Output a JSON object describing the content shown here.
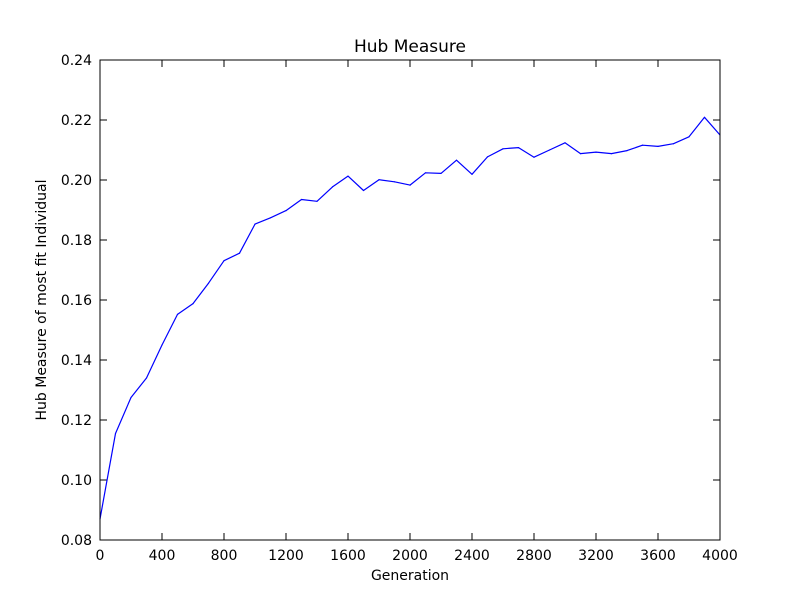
{
  "chart_data": {
    "type": "line",
    "title": "Hub Measure",
    "xlabel": "Generation",
    "ylabel": "Hub Measure of most fit Individual",
    "xlim": [
      0,
      4000
    ],
    "ylim": [
      0.08,
      0.24
    ],
    "xticks": [
      0,
      400,
      800,
      1200,
      1600,
      2000,
      2400,
      2800,
      3200,
      3600,
      4000
    ],
    "xtick_labels": [
      "0",
      "400",
      "800",
      "1200",
      "1600",
      "2000",
      "2400",
      "2800",
      "3200",
      "3600",
      "4000"
    ],
    "yticks": [
      0.08,
      0.1,
      0.12,
      0.14,
      0.16,
      0.18,
      0.2,
      0.22,
      0.24
    ],
    "ytick_labels": [
      "0.08",
      "0.10",
      "0.12",
      "0.14",
      "0.16",
      "0.18",
      "0.20",
      "0.22",
      "0.24"
    ],
    "grid": false,
    "legend": false,
    "series": [
      {
        "color": "#0000ff",
        "x": [
          0,
          100,
          200,
          300,
          400,
          500,
          600,
          700,
          800,
          900,
          1000,
          1100,
          1200,
          1300,
          1400,
          1500,
          1600,
          1700,
          1800,
          1900,
          2000,
          2100,
          2200,
          2300,
          2400,
          2500,
          2600,
          2700,
          2800,
          2900,
          3000,
          3100,
          3200,
          3300,
          3400,
          3500,
          3600,
          3700,
          3800,
          3900,
          4000
        ],
        "y": [
          0.087,
          0.1155,
          0.1275,
          0.134,
          0.145,
          0.1552,
          0.1588,
          0.1656,
          0.1731,
          0.1756,
          0.1853,
          0.1874,
          0.1898,
          0.1935,
          0.1929,
          0.1977,
          0.2013,
          0.1965,
          0.2001,
          0.1994,
          0.1983,
          0.2024,
          0.2022,
          0.2066,
          0.2019,
          0.2077,
          0.2104,
          0.2108,
          0.2076,
          0.21,
          0.2124,
          0.2088,
          0.2093,
          0.2088,
          0.2098,
          0.2116,
          0.2112,
          0.2121,
          0.2144,
          0.2209,
          0.215
        ]
      }
    ]
  }
}
